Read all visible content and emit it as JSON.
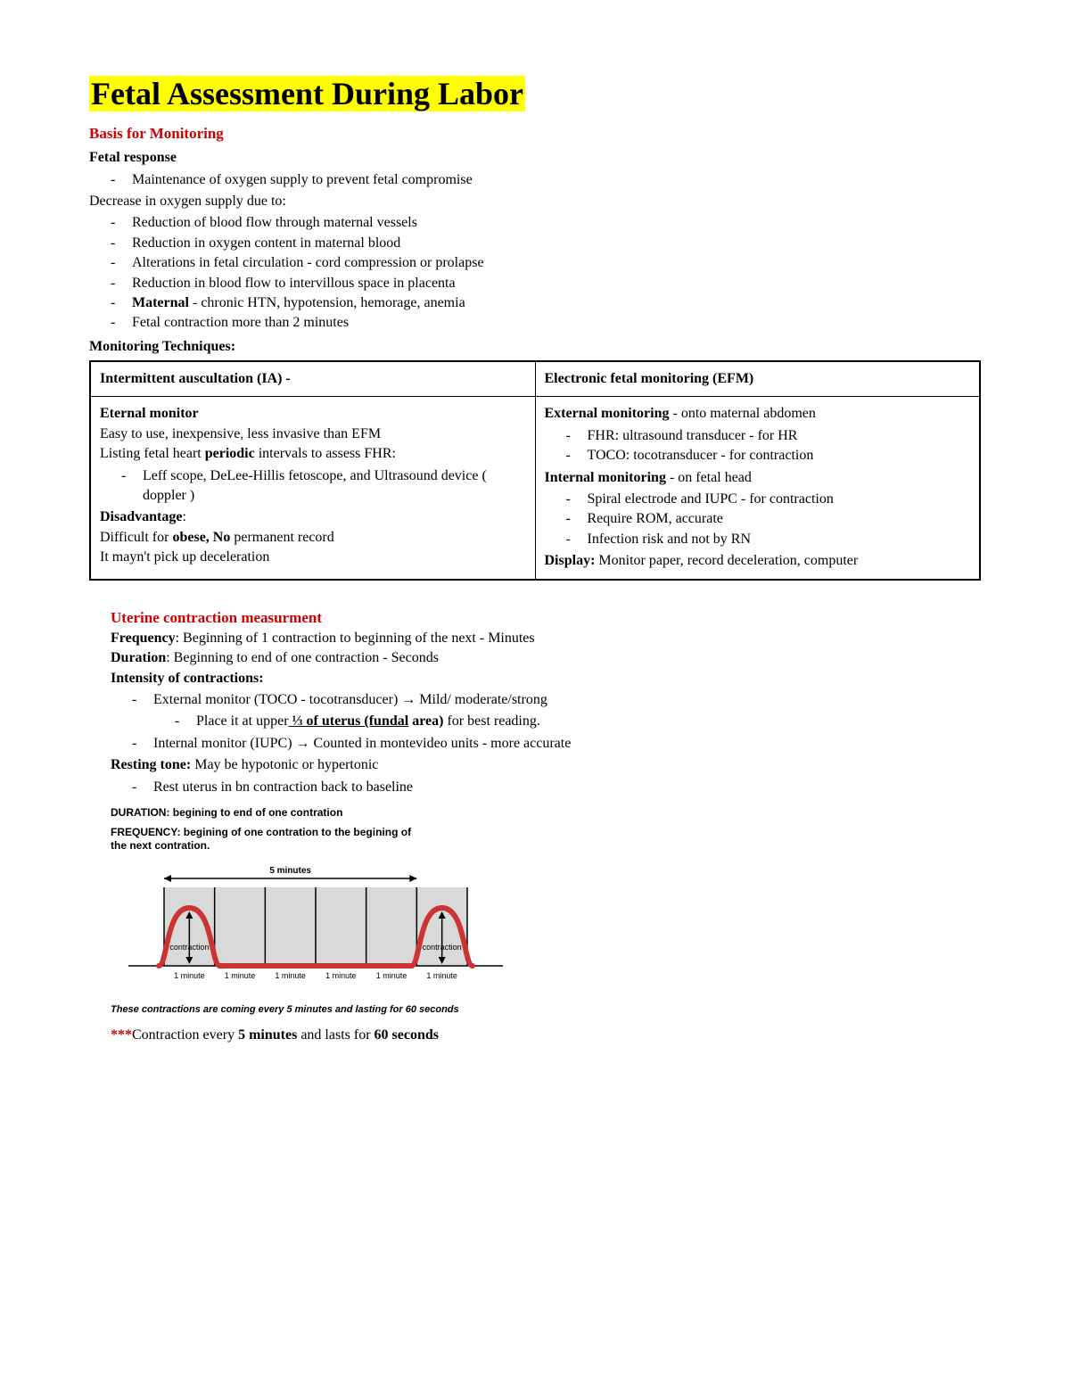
{
  "title": "Fetal Assessment During Labor",
  "section1": {
    "heading": "Basis for Monitoring",
    "sub1": "Fetal response",
    "bullet1": "Maintenance of oxygen supply to prevent fetal compromise",
    "line1": "Decrease in oxygen supply due to:",
    "bullets": {
      "b1": "Reduction of blood flow through maternal vessels",
      "b2": "Reduction in oxygen content in maternal blood",
      "b3": "Alterations in fetal circulation - cord compression or prolapse",
      "b4": "Reduction in blood flow to intervillous space in placenta",
      "b5_bold": "Maternal",
      "b5_rest": " - chronic HTN, hypotension, hemorage, anemia",
      "b6": "Fetal contraction more than 2 minutes"
    },
    "sub2": "Monitoring Techniques:"
  },
  "table": {
    "h1": "Intermittent auscultation (IA) -",
    "h2": "Electronic fetal monitoring (EFM)",
    "left": {
      "l1_bold": "Eternal monitor",
      "l2": "Easy to use, inexpensive, less invasive than EFM",
      "l3a": "Listing fetal heart ",
      "l3b": "periodic",
      "l3c": " intervals to assess FHR:",
      "l4": "Leff scope, DeLee-Hillis fetoscope, and Ultrasound device ( doppler )",
      "l5_bold": "Disadvantage",
      "l5_colon": ":",
      "l6a": "Difficult for ",
      "l6b": "obese, No",
      "l6c": " permanent record",
      "l7": "It mayn't pick up deceleration"
    },
    "right": {
      "r1_bold": "External monitoring",
      "r1_rest": " - onto maternal abdomen",
      "r1b1": "FHR: ultrasound transducer - for HR",
      "r1b2": "TOCO: tocotransducer - for contraction",
      "r2_bold": "Internal monitoring",
      "r2_rest": " - on fetal head",
      "r2b1": "Spiral electrode and IUPC - for contraction",
      "r2b2": "Require ROM, accurate",
      "r2b3": "Infection risk  and not by RN",
      "r3_bold": "Display:",
      "r3_rest": " Monitor paper, record deceleration, computer"
    }
  },
  "section2": {
    "heading": "Uterine contraction measurment",
    "freq_b": "Frequency",
    "freq": ": Beginning of 1 contraction to beginning of the next - Minutes",
    "dur_b": "Duration",
    "dur": ": Beginning to end of one contraction - Seconds",
    "int_b": "Intensity of contractions:",
    "int_b1": "External monitor (TOCO - tocotransducer) → Mild/ moderate/strong",
    "int_b1a_pre": "Place it at upper",
    "int_b1a_u": " ⅓ of uterus (fundal",
    "int_b1a_post_b": " area)",
    "int_b1a_post": " for best reading.",
    "int_b2": "Internal monitor (IUPC) → Counted in montevideo units - more accurate",
    "rest_b": "Resting tone:",
    "rest": " May be hypotonic or hypertonic",
    "rest_b1": "Rest uterus in bn contraction back to baseline"
  },
  "chart": {
    "cap1": "DURATION: begining to end of one contration",
    "cap2": "FREQUENCY: begining of one contration to the begining of the next contration.",
    "top_label": "5 minutes",
    "tick": "1 minute",
    "contraction_label": "contraction",
    "footer": "These contractions are coming every 5 minutes and lasting for 60 seconds",
    "colors": {
      "wave": "#cc3333",
      "bg": "#d9d9d9",
      "grid": "#000000",
      "arrow": "#000000"
    },
    "wave_width": 6,
    "n_ticks": 7
  },
  "footer": {
    "stars": "***",
    "t1": "Contraction every ",
    "t2": "5 minutes",
    "t3": " and lasts for ",
    "t4": "60 seconds"
  }
}
